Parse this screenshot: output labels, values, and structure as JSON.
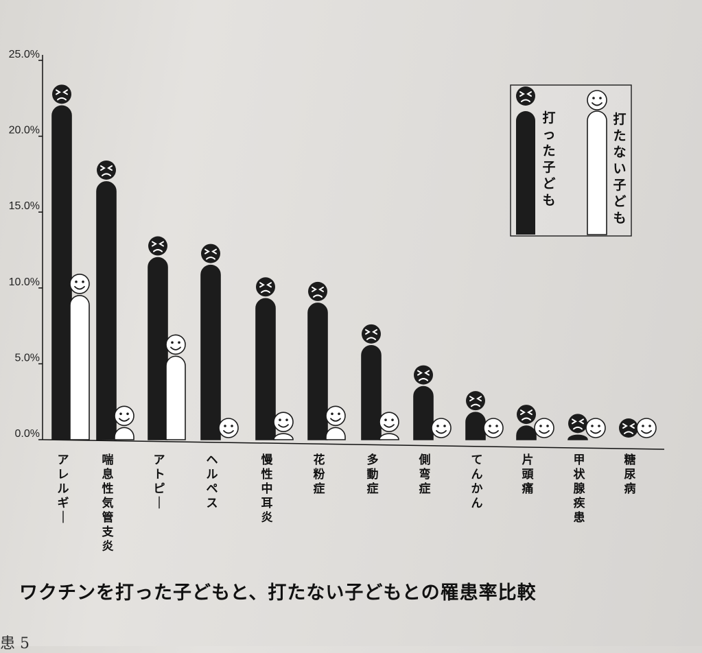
{
  "chart_data": {
    "type": "bar",
    "title": "ワクチンを打った子どもと、打たない子どもとの罹患率比較",
    "xlabel": "",
    "ylabel": "",
    "ylim": [
      0,
      25
    ],
    "yticks": [
      "0.0%",
      "5.0%",
      "10.0%",
      "15.0%",
      "20.0%",
      "25.0%"
    ],
    "categories": [
      "アレルギー",
      "喘息性気管支炎",
      "アトピー",
      "ヘルペス",
      "慢性中耳炎",
      "花粉症",
      "多動症",
      "側弯症",
      "てんかん",
      "片頭痛",
      "甲状腺疾患",
      "糖尿病"
    ],
    "series": [
      {
        "name": "打った子ども",
        "color": "#1c1c1c",
        "values": [
          22.0,
          17.0,
          12.0,
          11.5,
          9.3,
          9.0,
          6.2,
          3.5,
          1.8,
          0.9,
          0.3,
          0.0
        ]
      },
      {
        "name": "打たない子ども",
        "color": "#ffffff",
        "values": [
          9.5,
          0.8,
          5.5,
          0.0,
          0.4,
          0.8,
          0.4,
          0.0,
          0.0,
          0.0,
          0.0,
          0.0
        ]
      }
    ],
    "legend_position": "top-right",
    "grid": false
  },
  "footer_text": "患 5"
}
